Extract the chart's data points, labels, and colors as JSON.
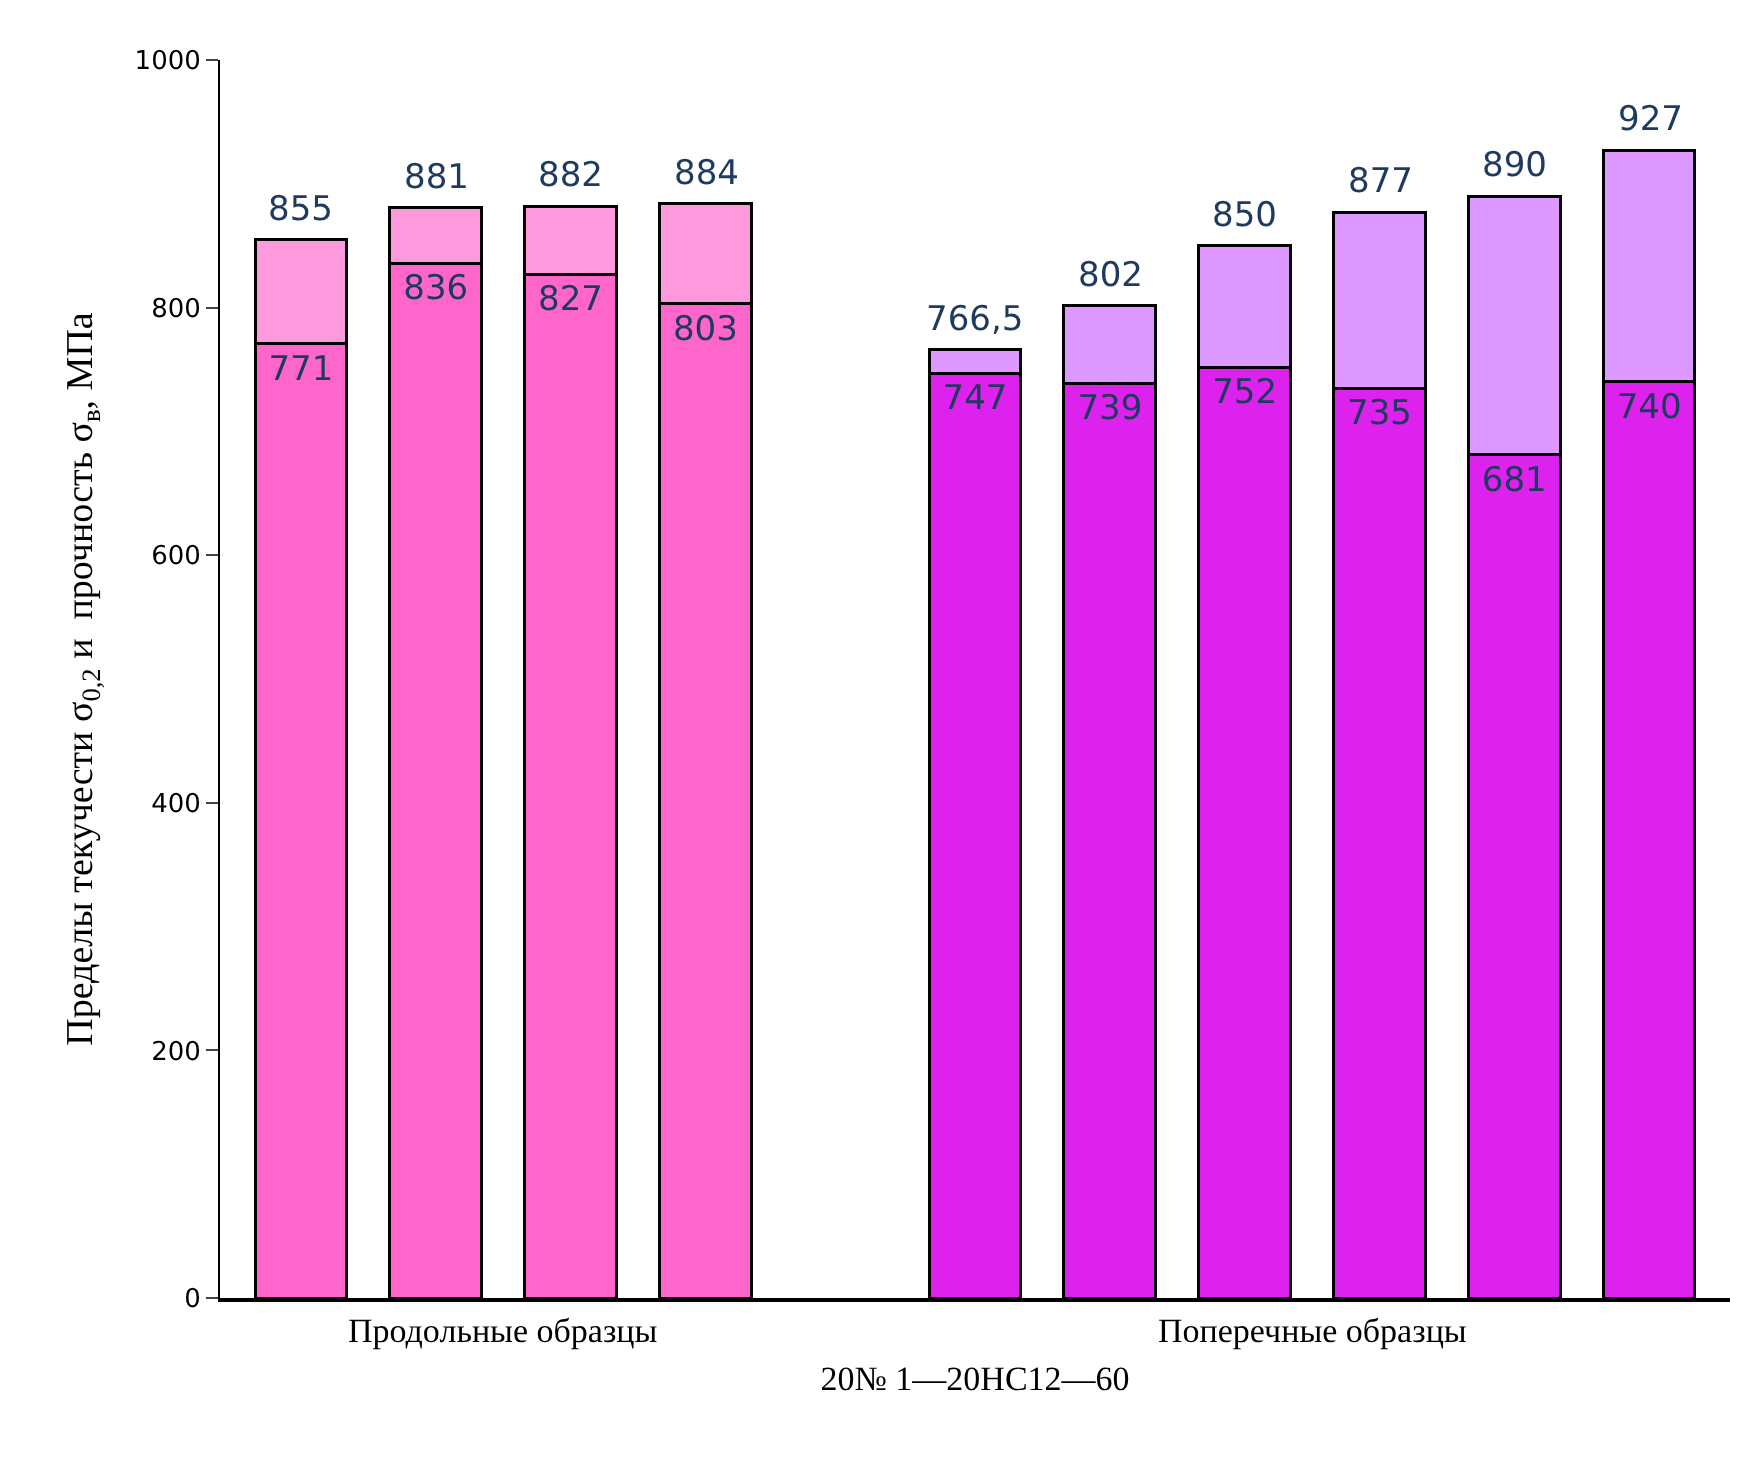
{
  "chart_data": {
    "type": "bar",
    "stacked": true,
    "xlabel": "20№ 1—20НС12—60",
    "ylabel": "Пределы текучести σ$_{0,2}$ и  прочность σ$_{в}$, МПа",
    "categories": [
      null,
      null,
      null,
      null,
      null,
      null,
      null,
      null,
      null,
      null,
      null
    ],
    "series": [
      {
        "colors": [
          "#ff66cc",
          "#ff66cc",
          "#ff66cc",
          "#ff66cc",
          null,
          "#dd22ee",
          "#dd22ee",
          "#dd22ee",
          "#dd22ee",
          "#dd22ee",
          "#dd22ee"
        ],
        "values": [
          771,
          836,
          827,
          803,
          null,
          747,
          739,
          752,
          735,
          681,
          740
        ],
        "value_labels": [
          "771",
          "836",
          "827",
          "803",
          null,
          "747",
          "739",
          "752",
          "735",
          "681",
          "740"
        ]
      },
      {
        "colors": [
          "#ff99dd",
          "#ff99dd",
          "#ff99dd",
          "#ff99dd",
          null,
          "#dd99ff",
          "#dd99ff",
          "#dd99ff",
          "#dd99ff",
          "#dd99ff",
          "#dd99ff"
        ],
        "values": [
          84,
          45,
          55,
          81,
          null,
          19.5,
          63,
          98,
          142,
          209,
          187
        ]
      }
    ],
    "totals": [
      "855",
      "881",
      "882",
      "884",
      null,
      "766,5",
      "802",
      "850",
      "877",
      "890",
      "927"
    ],
    "ylim": [
      0,
      1000
    ],
    "yticks": [
      0,
      200,
      400,
      600,
      800,
      1000
    ],
    "annotations": [
      "Продольные образцы",
      "Поперечные образцы"
    ]
  }
}
